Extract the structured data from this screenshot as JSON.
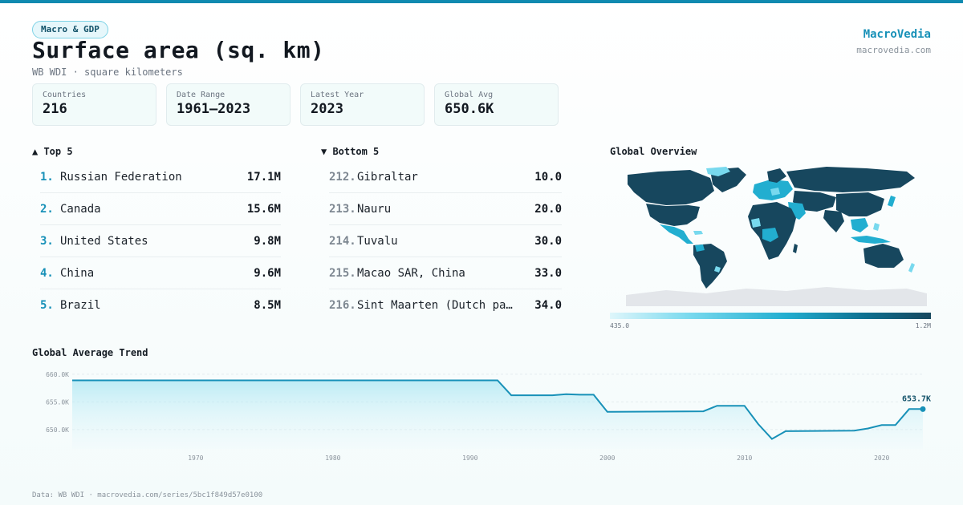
{
  "header": {
    "tag": "Macro & GDP",
    "title": "Surface area (sq. km)",
    "subtitle": "WB WDI · square kilometers",
    "brand": "MacroVedia",
    "brand_url": "macrovedia.com",
    "accent": "#1891b8"
  },
  "stats": [
    {
      "label": "Countries",
      "value": "216"
    },
    {
      "label": "Date Range",
      "value": "1961–2023"
    },
    {
      "label": "Latest Year",
      "value": "2023"
    },
    {
      "label": "Global Avg",
      "value": "650.6K"
    }
  ],
  "top5": {
    "heading": "▲ Top 5",
    "items": [
      {
        "rank": "1.",
        "name": "Russian Federation",
        "value": "17.1M"
      },
      {
        "rank": "2.",
        "name": "Canada",
        "value": "15.6M"
      },
      {
        "rank": "3.",
        "name": "United States",
        "value": "9.8M"
      },
      {
        "rank": "4.",
        "name": "China",
        "value": "9.6M"
      },
      {
        "rank": "5.",
        "name": "Brazil",
        "value": "8.5M"
      }
    ]
  },
  "bottom5": {
    "heading": "▼ Bottom 5",
    "items": [
      {
        "rank": "212.",
        "name": "Gibraltar",
        "value": "10.0"
      },
      {
        "rank": "213.",
        "name": "Nauru",
        "value": "20.0"
      },
      {
        "rank": "214.",
        "name": "Tuvalu",
        "value": "30.0"
      },
      {
        "rank": "215.",
        "name": "Macao SAR, China",
        "value": "33.0"
      },
      {
        "rank": "216.",
        "name": "Sint Maarten (Dutch pa…",
        "value": "34.0"
      }
    ]
  },
  "map": {
    "heading": "Global Overview",
    "legend_min": "435.0",
    "legend_max": "1.2M",
    "colors": {
      "low": "#dff6fb",
      "mid": "#22aed0",
      "high": "#17475e",
      "nodata": "#e3e6ea"
    }
  },
  "trend": {
    "heading": "Global Average Trend",
    "last_label": "653.7K"
  },
  "footer": "Data: WB WDI · macrovedia.com/series/5bc1f849d57e0100",
  "chart_data": {
    "type": "area",
    "title": "Global Average Trend",
    "xlabel": "",
    "ylabel": "",
    "x_ticks": [
      1970,
      1980,
      1990,
      2000,
      2010,
      2020
    ],
    "y_ticks": [
      {
        "value": 660000,
        "label": "660.0K"
      },
      {
        "value": 655000,
        "label": "655.0K"
      },
      {
        "value": 650000,
        "label": "650.0K"
      }
    ],
    "ylim": [
      646500,
      661000
    ],
    "xlim": [
      1961,
      2023
    ],
    "grid": true,
    "series": [
      {
        "x": [
          1961,
          1992,
          1993,
          1996,
          1997,
          1998,
          1999,
          2000,
          2007,
          2008,
          2010,
          2011,
          2012,
          2013,
          2018,
          2019,
          2020,
          2021,
          2022,
          2023
        ],
        "values": [
          658900,
          658900,
          656200,
          656200,
          656400,
          656300,
          656300,
          653200,
          653300,
          654300,
          654300,
          651000,
          648300,
          649700,
          649800,
          650200,
          650800,
          650800,
          653700,
          653700
        ]
      }
    ],
    "last_value_label": "653.7K"
  }
}
